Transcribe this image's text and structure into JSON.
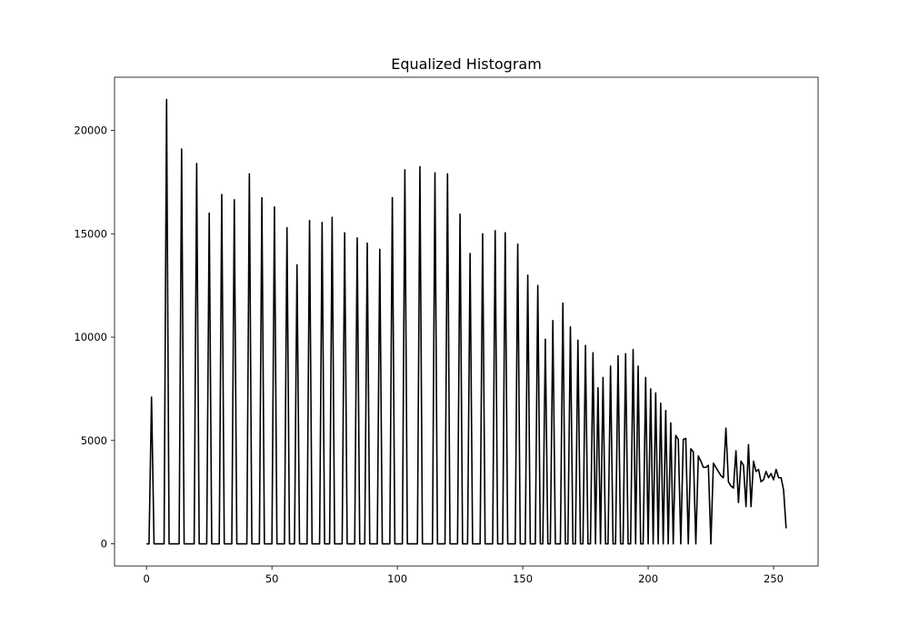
{
  "chart_data": {
    "type": "line",
    "title": "Equalized Histogram",
    "x": [
      0,
      1,
      2,
      3,
      4,
      5,
      6,
      7,
      8,
      9,
      10,
      11,
      12,
      13,
      14,
      15,
      16,
      17,
      18,
      19,
      20,
      21,
      22,
      23,
      24,
      25,
      26,
      27,
      28,
      29,
      30,
      31,
      32,
      33,
      34,
      35,
      36,
      37,
      38,
      39,
      40,
      41,
      42,
      43,
      44,
      45,
      46,
      47,
      48,
      49,
      50,
      51,
      52,
      53,
      54,
      55,
      56,
      57,
      58,
      59,
      60,
      61,
      62,
      63,
      64,
      65,
      66,
      67,
      68,
      69,
      70,
      71,
      72,
      73,
      74,
      75,
      76,
      77,
      78,
      79,
      80,
      81,
      82,
      83,
      84,
      85,
      86,
      87,
      88,
      89,
      90,
      91,
      92,
      93,
      94,
      95,
      96,
      97,
      98,
      99,
      100,
      101,
      102,
      103,
      104,
      105,
      106,
      107,
      108,
      109,
      110,
      111,
      112,
      113,
      114,
      115,
      116,
      117,
      118,
      119,
      120,
      121,
      122,
      123,
      124,
      125,
      126,
      127,
      128,
      129,
      130,
      131,
      132,
      133,
      134,
      135,
      136,
      137,
      138,
      139,
      140,
      141,
      142,
      143,
      144,
      145,
      146,
      147,
      148,
      149,
      150,
      151,
      152,
      153,
      154,
      155,
      156,
      157,
      158,
      159,
      160,
      161,
      162,
      163,
      164,
      165,
      166,
      167,
      168,
      169,
      170,
      171,
      172,
      173,
      174,
      175,
      176,
      177,
      178,
      179,
      180,
      181,
      182,
      183,
      184,
      185,
      186,
      187,
      188,
      189,
      190,
      191,
      192,
      193,
      194,
      195,
      196,
      197,
      198,
      199,
      200,
      201,
      202,
      203,
      204,
      205,
      206,
      207,
      208,
      209,
      210,
      211,
      212,
      213,
      214,
      215,
      216,
      217,
      218,
      219,
      220,
      221,
      222,
      223,
      224,
      225,
      226,
      227,
      228,
      229,
      230,
      231,
      232,
      233,
      234,
      235,
      236,
      237,
      238,
      239,
      240,
      241,
      242,
      243,
      244,
      245,
      246,
      247,
      248,
      249,
      250,
      251,
      252,
      253,
      254,
      255
    ],
    "values": [
      0,
      0,
      7100,
      0,
      0,
      0,
      0,
      0,
      21500,
      0,
      0,
      0,
      0,
      0,
      19100,
      0,
      0,
      0,
      0,
      0,
      18400,
      0,
      0,
      0,
      0,
      16000,
      0,
      0,
      0,
      0,
      16900,
      0,
      0,
      0,
      0,
      16650,
      0,
      0,
      0,
      0,
      0,
      17900,
      0,
      0,
      0,
      0,
      16750,
      0,
      0,
      0,
      0,
      16300,
      0,
      0,
      0,
      0,
      15300,
      0,
      0,
      0,
      13500,
      0,
      0,
      0,
      0,
      15650,
      0,
      0,
      0,
      0,
      15550,
      0,
      0,
      0,
      15800,
      0,
      0,
      0,
      0,
      15050,
      0,
      0,
      0,
      0,
      14800,
      0,
      0,
      0,
      14550,
      0,
      0,
      0,
      0,
      14250,
      0,
      0,
      0,
      0,
      16750,
      0,
      0,
      0,
      0,
      18100,
      0,
      0,
      0,
      0,
      0,
      18250,
      0,
      0,
      0,
      0,
      0,
      17950,
      0,
      0,
      0,
      0,
      17900,
      0,
      0,
      0,
      0,
      15950,
      0,
      0,
      0,
      14050,
      0,
      0,
      0,
      0,
      15000,
      0,
      0,
      0,
      0,
      15150,
      0,
      0,
      0,
      15050,
      0,
      0,
      0,
      0,
      14500,
      0,
      0,
      0,
      13000,
      0,
      0,
      0,
      12500,
      0,
      0,
      9900,
      0,
      0,
      10800,
      0,
      0,
      0,
      11650,
      0,
      0,
      10500,
      0,
      0,
      9850,
      0,
      0,
      9600,
      0,
      0,
      9250,
      0,
      7550,
      0,
      8050,
      0,
      0,
      8600,
      0,
      0,
      9100,
      0,
      0,
      9200,
      0,
      0,
      9400,
      0,
      8600,
      0,
      0,
      8050,
      0,
      7500,
      0,
      7300,
      0,
      6800,
      0,
      6450,
      0,
      5850,
      0,
      5250,
      5050,
      0,
      5050,
      5100,
      0,
      4600,
      4450,
      0,
      4250,
      4000,
      3700,
      3700,
      3800,
      0,
      3900,
      3700,
      3500,
      3300,
      3200,
      5600,
      3000,
      2800,
      2700,
      4500,
      2000,
      4000,
      3800,
      1800,
      4800,
      1800,
      4000,
      3500,
      3600,
      3000,
      3100,
      3500,
      3200,
      3400,
      3100,
      3600,
      3200,
      3200,
      2600,
      750
    ],
    "color": "#000000",
    "xlim": [
      -12.75,
      267.75
    ],
    "xticks": [
      0,
      50,
      100,
      150,
      200,
      250
    ],
    "ylim": [
      -1075,
      22575
    ],
    "yticks": [
      0,
      5000,
      10000,
      15000,
      20000
    ]
  }
}
